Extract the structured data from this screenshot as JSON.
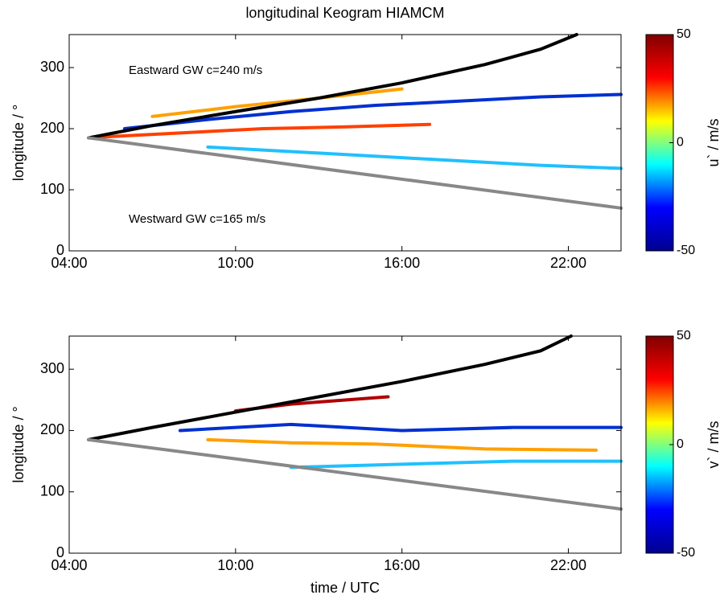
{
  "chart_data": [
    {
      "type": "line",
      "title": "longitudinal Keogram HIAMCM",
      "ylabel": "longitude / °",
      "annotations": [
        "Eastward GW c=240 m/s",
        "Westward GW c=165 m/s"
      ],
      "xlim": [
        4,
        23.9
      ],
      "xticks": [
        {
          "value": 4,
          "label": "04:00"
        },
        {
          "value": 10,
          "label": "10:00"
        },
        {
          "value": 16,
          "label": "16:00"
        },
        {
          "value": 22,
          "label": "22:00"
        }
      ],
      "ylim": [
        0,
        354
      ],
      "yticks": [
        0,
        100,
        200,
        300
      ],
      "series": [
        {
          "color": "#ff4000",
          "x": [
            5,
            8,
            11,
            14,
            17
          ],
          "values": [
            186,
            193,
            200,
            203,
            207
          ]
        },
        {
          "color": "#0030d0",
          "x": [
            6,
            9,
            12,
            15,
            18,
            21,
            23.9
          ],
          "values": [
            200,
            215,
            228,
            238,
            245,
            252,
            256
          ]
        },
        {
          "color": "#ffa000",
          "x": [
            7,
            10,
            13,
            16
          ],
          "values": [
            220,
            236,
            250,
            265
          ]
        },
        {
          "color": "#20c0ff",
          "x": [
            9,
            13,
            17,
            21,
            23.9
          ],
          "values": [
            170,
            160,
            150,
            140,
            135
          ]
        },
        {
          "color": "#000000",
          "x": [
            4.7,
            7,
            10,
            13,
            16,
            19,
            21,
            22.3
          ],
          "values": [
            185,
            205,
            228,
            250,
            275,
            305,
            330,
            354
          ]
        },
        {
          "color": "#888888",
          "x": [
            4.7,
            23.9
          ],
          "values": [
            185,
            70
          ]
        }
      ],
      "colorbar": {
        "label": "u` / m/s",
        "clim": [
          -50,
          50
        ],
        "ticks": [
          -50,
          0,
          50
        ],
        "colormap": [
          "#00008f",
          "#0000ff",
          "#00ffff",
          "#ffff00",
          "#ff0000",
          "#800000"
        ]
      }
    },
    {
      "type": "line",
      "ylabel": "longitude / °",
      "xlabel": "time / UTC",
      "xlim": [
        4,
        23.9
      ],
      "xticks": [
        {
          "value": 4,
          "label": "04:00"
        },
        {
          "value": 10,
          "label": "10:00"
        },
        {
          "value": 16,
          "label": "16:00"
        },
        {
          "value": 22,
          "label": "22:00"
        }
      ],
      "ylim": [
        0,
        354
      ],
      "yticks": [
        0,
        100,
        200,
        300
      ],
      "series": [
        {
          "color": "#b00000",
          "x": [
            10,
            12,
            14,
            15.5
          ],
          "values": [
            232,
            243,
            250,
            255
          ]
        },
        {
          "color": "#0030d0",
          "x": [
            8,
            12,
            16,
            20,
            23.9
          ],
          "values": [
            200,
            210,
            200,
            205,
            205
          ]
        },
        {
          "color": "#ffa000",
          "x": [
            9,
            12,
            15,
            19,
            23
          ],
          "values": [
            185,
            180,
            178,
            170,
            168
          ]
        },
        {
          "color": "#20c0ff",
          "x": [
            12,
            16,
            20,
            23.9
          ],
          "values": [
            140,
            145,
            150,
            150
          ]
        },
        {
          "color": "#000000",
          "x": [
            4.7,
            7,
            10,
            13,
            16,
            19,
            21,
            22.1
          ],
          "values": [
            185,
            205,
            230,
            255,
            280,
            308,
            330,
            354
          ]
        },
        {
          "color": "#888888",
          "x": [
            4.7,
            23.9
          ],
          "values": [
            185,
            72
          ]
        }
      ],
      "colorbar": {
        "label": "v` / m/s",
        "clim": [
          -50,
          50
        ],
        "ticks": [
          -50,
          0,
          50
        ],
        "colormap": [
          "#00008f",
          "#0000ff",
          "#00ffff",
          "#ffff00",
          "#ff0000",
          "#800000"
        ]
      }
    }
  ]
}
